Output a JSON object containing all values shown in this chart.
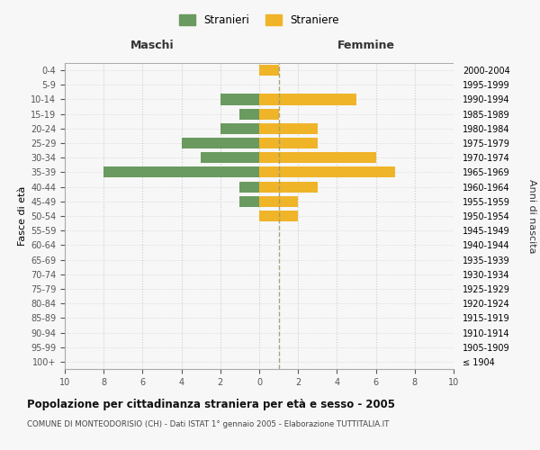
{
  "age_groups": [
    "100+",
    "95-99",
    "90-94",
    "85-89",
    "80-84",
    "75-79",
    "70-74",
    "65-69",
    "60-64",
    "55-59",
    "50-54",
    "45-49",
    "40-44",
    "35-39",
    "30-34",
    "25-29",
    "20-24",
    "15-19",
    "10-14",
    "5-9",
    "0-4"
  ],
  "birth_years": [
    "≤ 1904",
    "1905-1909",
    "1910-1914",
    "1915-1919",
    "1920-1924",
    "1925-1929",
    "1930-1934",
    "1935-1939",
    "1940-1944",
    "1945-1949",
    "1950-1954",
    "1955-1959",
    "1960-1964",
    "1965-1969",
    "1970-1974",
    "1975-1979",
    "1980-1984",
    "1985-1989",
    "1990-1994",
    "1995-1999",
    "2000-2004"
  ],
  "males": [
    0,
    0,
    0,
    0,
    0,
    0,
    0,
    0,
    0,
    0,
    0,
    1,
    1,
    8,
    3,
    4,
    2,
    1,
    2,
    0,
    0
  ],
  "females": [
    0,
    0,
    0,
    0,
    0,
    0,
    0,
    0,
    0,
    0,
    2,
    2,
    3,
    7,
    6,
    3,
    3,
    1,
    5,
    0,
    1
  ],
  "male_color": "#6a9a5f",
  "female_color": "#f0b429",
  "title": "Popolazione per cittadinanza straniera per età e sesso - 2005",
  "subtitle": "COMUNE DI MONTEODORISIO (CH) - Dati ISTAT 1° gennaio 2005 - Elaborazione TUTTITALIA.IT",
  "xlabel_left": "Maschi",
  "xlabel_right": "Femmine",
  "ylabel_left": "Fasce di età",
  "ylabel_right": "Anni di nascita",
  "legend_male": "Stranieri",
  "legend_female": "Straniere",
  "xlim": 10,
  "bg_color": "#f7f7f7",
  "grid_color": "#cccccc",
  "dashed_line_color": "#999966"
}
